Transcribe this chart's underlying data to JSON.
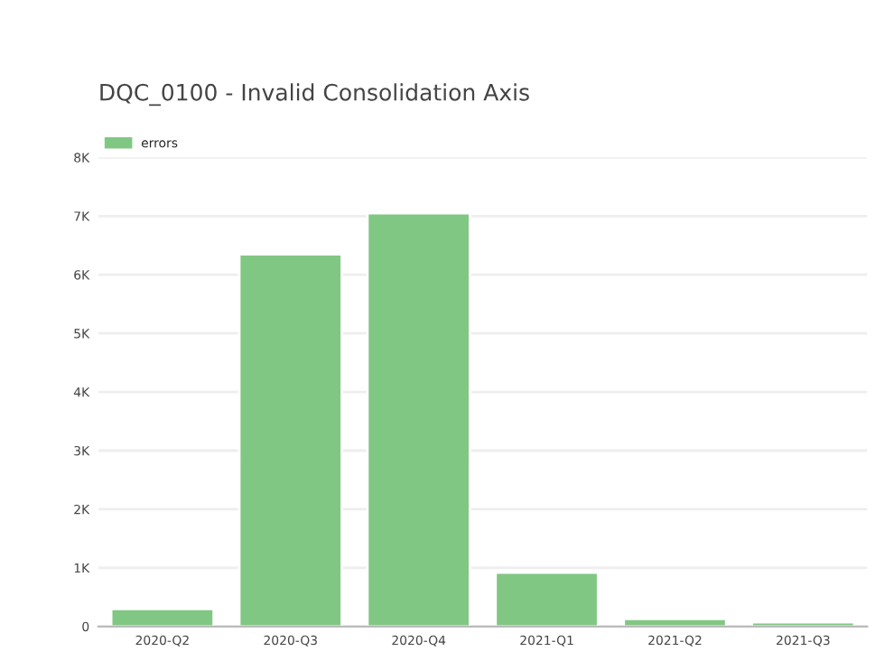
{
  "chart_data": {
    "type": "bar",
    "title": "DQC_0100 - Invalid Consolidation Axis",
    "categories": [
      "2020-Q2",
      "2020-Q3",
      "2020-Q4",
      "2021-Q1",
      "2021-Q2",
      "2021-Q3"
    ],
    "series": [
      {
        "name": "errors",
        "color": "#81c784",
        "values": [
          300,
          6350,
          7050,
          920,
          130,
          70
        ]
      }
    ],
    "ylim": [
      0,
      8000
    ],
    "yticks": [
      0,
      {
        "value": 1000,
        "label": "1K"
      },
      {
        "value": 2000,
        "label": "2K"
      },
      {
        "value": 3000,
        "label": "3K"
      },
      {
        "value": 4000,
        "label": "4K"
      },
      {
        "value": 5000,
        "label": "5K"
      },
      {
        "value": 6000,
        "label": "6K"
      },
      {
        "value": 7000,
        "label": "7K"
      },
      {
        "value": 8000,
        "label": "8K"
      }
    ],
    "grid": "y",
    "legend": "top left"
  }
}
